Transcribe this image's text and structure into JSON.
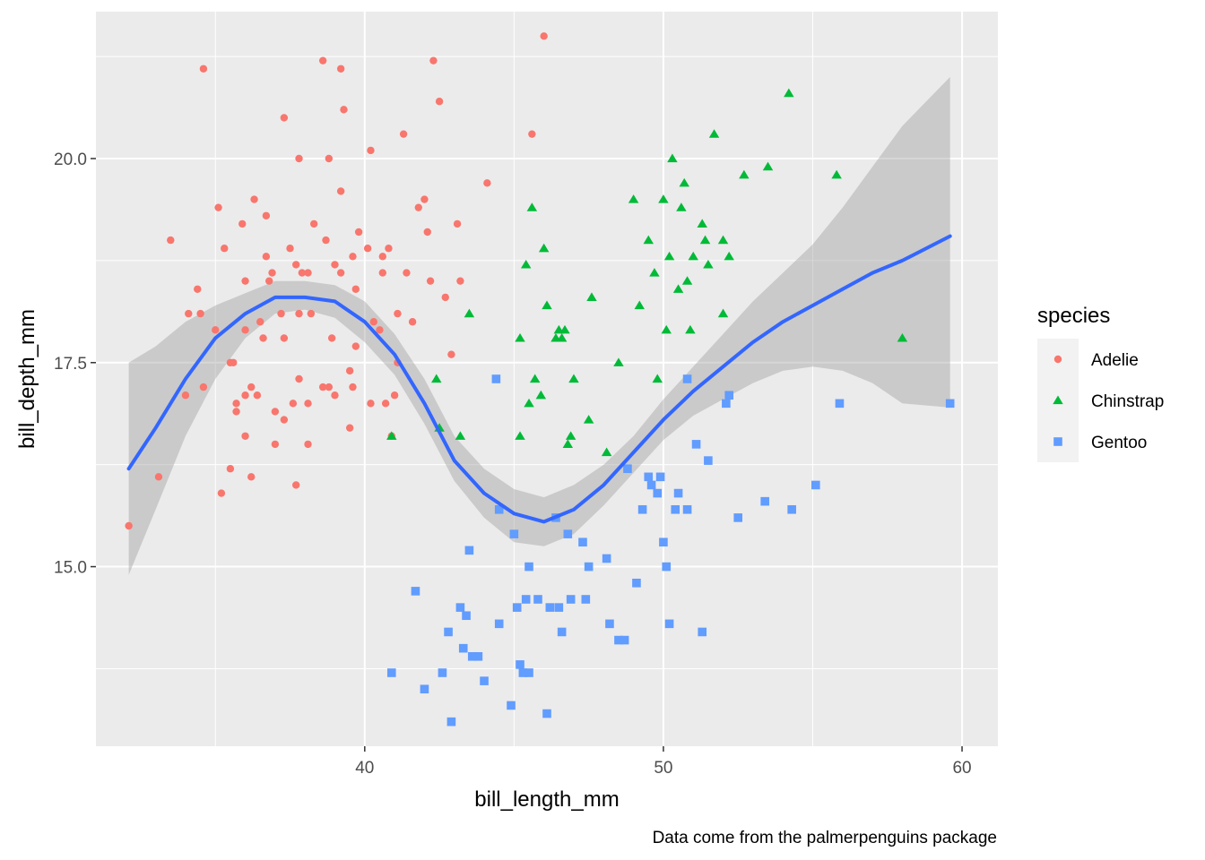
{
  "chart_data": {
    "type": "scatter",
    "xlabel": "bill_length_mm",
    "ylabel": "bill_depth_mm",
    "caption": "Data come from the palmerpenguins package",
    "xlim": [
      31.0,
      61.2
    ],
    "ylim": [
      12.8,
      21.8
    ],
    "x_ticks": [
      40,
      50,
      60
    ],
    "x_tick_labels": [
      "40",
      "50",
      "60"
    ],
    "y_ticks": [
      15.0,
      17.5,
      20.0
    ],
    "y_tick_labels": [
      "15.0",
      "17.5",
      "20.0"
    ],
    "x_minor_ticks": [
      35,
      45,
      55
    ],
    "y_minor_ticks": [
      13.75,
      16.25,
      18.75,
      21.25
    ],
    "grid": true,
    "legend": {
      "title": "species",
      "position": "right",
      "entries": [
        {
          "label": "Adelie",
          "shape": "circle",
          "color": "#F8766D"
        },
        {
          "label": "Chinstrap",
          "shape": "triangle",
          "color": "#00BA38"
        },
        {
          "label": "Gentoo",
          "shape": "square",
          "color": "#619CFF"
        }
      ]
    },
    "series": [
      {
        "name": "Adelie",
        "shape": "circle",
        "color": "#F8766D",
        "points": [
          [
            32.1,
            15.5
          ],
          [
            33.1,
            16.1
          ],
          [
            33.5,
            19.0
          ],
          [
            34.0,
            17.1
          ],
          [
            34.1,
            18.1
          ],
          [
            34.4,
            18.4
          ],
          [
            34.5,
            18.1
          ],
          [
            34.6,
            21.1
          ],
          [
            34.6,
            17.2
          ],
          [
            35.0,
            17.9
          ],
          [
            35.1,
            19.4
          ],
          [
            35.2,
            15.9
          ],
          [
            35.3,
            18.9
          ],
          [
            35.5,
            16.2
          ],
          [
            35.5,
            17.5
          ],
          [
            35.6,
            17.5
          ],
          [
            35.7,
            16.9
          ],
          [
            35.7,
            17.0
          ],
          [
            35.9,
            19.2
          ],
          [
            36.0,
            17.9
          ],
          [
            36.0,
            18.5
          ],
          [
            36.0,
            17.1
          ],
          [
            36.0,
            16.6
          ],
          [
            36.2,
            17.2
          ],
          [
            36.2,
            16.1
          ],
          [
            36.3,
            19.5
          ],
          [
            36.4,
            17.1
          ],
          [
            36.5,
            18.0
          ],
          [
            36.6,
            17.8
          ],
          [
            36.7,
            19.3
          ],
          [
            36.7,
            18.8
          ],
          [
            36.8,
            18.5
          ],
          [
            36.9,
            18.6
          ],
          [
            37.0,
            16.9
          ],
          [
            37.0,
            16.5
          ],
          [
            37.2,
            18.1
          ],
          [
            37.3,
            16.8
          ],
          [
            37.3,
            17.8
          ],
          [
            37.3,
            20.5
          ],
          [
            37.5,
            18.9
          ],
          [
            37.6,
            17.0
          ],
          [
            37.7,
            18.7
          ],
          [
            37.7,
            16.0
          ],
          [
            37.8,
            18.1
          ],
          [
            37.8,
            17.3
          ],
          [
            37.8,
            20.0
          ],
          [
            37.9,
            18.6
          ],
          [
            38.1,
            18.6
          ],
          [
            38.1,
            16.5
          ],
          [
            38.1,
            17.0
          ],
          [
            38.2,
            18.1
          ],
          [
            38.3,
            19.2
          ],
          [
            38.6,
            17.2
          ],
          [
            38.6,
            21.2
          ],
          [
            38.7,
            19.0
          ],
          [
            38.8,
            17.2
          ],
          [
            38.8,
            20.0
          ],
          [
            38.9,
            17.8
          ],
          [
            39.0,
            17.1
          ],
          [
            39.0,
            18.7
          ],
          [
            39.2,
            19.6
          ],
          [
            39.2,
            18.6
          ],
          [
            39.2,
            21.1
          ],
          [
            39.3,
            20.6
          ],
          [
            39.5,
            17.4
          ],
          [
            39.5,
            16.7
          ],
          [
            39.6,
            18.8
          ],
          [
            39.6,
            17.2
          ],
          [
            39.7,
            18.4
          ],
          [
            39.7,
            17.7
          ],
          [
            39.8,
            19.1
          ],
          [
            40.1,
            18.9
          ],
          [
            40.2,
            17.0
          ],
          [
            40.2,
            20.1
          ],
          [
            40.3,
            18.0
          ],
          [
            40.5,
            17.9
          ],
          [
            40.6,
            18.6
          ],
          [
            40.6,
            18.8
          ],
          [
            40.7,
            17.0
          ],
          [
            40.8,
            18.9
          ],
          [
            40.9,
            16.6
          ],
          [
            41.0,
            17.1
          ],
          [
            41.1,
            17.5
          ],
          [
            41.1,
            18.1
          ],
          [
            41.3,
            20.3
          ],
          [
            41.4,
            18.6
          ],
          [
            41.6,
            18.0
          ],
          [
            41.8,
            19.4
          ],
          [
            42.0,
            19.5
          ],
          [
            42.1,
            19.1
          ],
          [
            42.2,
            18.5
          ],
          [
            42.3,
            21.2
          ],
          [
            42.5,
            20.7
          ],
          [
            42.7,
            18.3
          ],
          [
            42.9,
            17.6
          ],
          [
            43.1,
            19.2
          ],
          [
            43.2,
            18.5
          ],
          [
            44.1,
            19.7
          ],
          [
            45.6,
            20.3
          ],
          [
            46.0,
            21.5
          ]
        ]
      },
      {
        "name": "Chinstrap",
        "shape": "triangle",
        "color": "#00BA38",
        "points": [
          [
            40.9,
            16.6
          ],
          [
            42.4,
            17.3
          ],
          [
            42.5,
            16.7
          ],
          [
            43.2,
            16.6
          ],
          [
            43.5,
            18.1
          ],
          [
            45.2,
            16.6
          ],
          [
            45.2,
            17.8
          ],
          [
            45.4,
            18.7
          ],
          [
            45.5,
            17.0
          ],
          [
            45.6,
            19.4
          ],
          [
            45.7,
            17.3
          ],
          [
            45.9,
            17.1
          ],
          [
            46.0,
            18.9
          ],
          [
            46.1,
            18.2
          ],
          [
            46.4,
            17.8
          ],
          [
            46.5,
            17.9
          ],
          [
            46.6,
            17.8
          ],
          [
            46.7,
            17.9
          ],
          [
            46.8,
            16.5
          ],
          [
            46.9,
            16.6
          ],
          [
            47.0,
            17.3
          ],
          [
            47.5,
            16.8
          ],
          [
            47.6,
            18.3
          ],
          [
            48.1,
            16.4
          ],
          [
            48.5,
            17.5
          ],
          [
            49.0,
            19.5
          ],
          [
            49.2,
            18.2
          ],
          [
            49.5,
            19.0
          ],
          [
            49.7,
            18.6
          ],
          [
            49.8,
            17.3
          ],
          [
            50.0,
            19.5
          ],
          [
            50.1,
            17.9
          ],
          [
            50.2,
            18.8
          ],
          [
            50.3,
            20.0
          ],
          [
            50.5,
            18.4
          ],
          [
            50.6,
            19.4
          ],
          [
            50.7,
            19.7
          ],
          [
            50.8,
            18.5
          ],
          [
            50.9,
            17.9
          ],
          [
            51.0,
            18.8
          ],
          [
            51.3,
            19.2
          ],
          [
            51.4,
            19.0
          ],
          [
            51.5,
            18.7
          ],
          [
            51.7,
            20.3
          ],
          [
            52.0,
            18.1
          ],
          [
            52.0,
            19.0
          ],
          [
            52.2,
            18.8
          ],
          [
            52.7,
            19.8
          ],
          [
            53.5,
            19.9
          ],
          [
            54.2,
            20.8
          ],
          [
            55.8,
            19.8
          ],
          [
            58.0,
            17.8
          ]
        ]
      },
      {
        "name": "Gentoo",
        "shape": "square",
        "color": "#619CFF",
        "points": [
          [
            40.9,
            13.7
          ],
          [
            41.7,
            14.7
          ],
          [
            42.0,
            13.5
          ],
          [
            42.6,
            13.7
          ],
          [
            42.8,
            14.2
          ],
          [
            42.9,
            13.1
          ],
          [
            43.2,
            14.5
          ],
          [
            43.3,
            14.0
          ],
          [
            43.4,
            14.4
          ],
          [
            43.5,
            15.2
          ],
          [
            43.6,
            13.9
          ],
          [
            43.8,
            13.9
          ],
          [
            44.0,
            13.6
          ],
          [
            44.4,
            17.3
          ],
          [
            44.5,
            14.3
          ],
          [
            44.5,
            15.7
          ],
          [
            44.9,
            13.3
          ],
          [
            45.0,
            15.4
          ],
          [
            45.1,
            14.5
          ],
          [
            45.2,
            13.8
          ],
          [
            45.3,
            13.7
          ],
          [
            45.4,
            14.6
          ],
          [
            45.5,
            13.7
          ],
          [
            45.5,
            15.0
          ],
          [
            45.8,
            14.6
          ],
          [
            46.1,
            13.2
          ],
          [
            46.2,
            14.5
          ],
          [
            46.4,
            15.6
          ],
          [
            46.5,
            14.5
          ],
          [
            46.6,
            14.2
          ],
          [
            46.8,
            15.4
          ],
          [
            46.9,
            14.6
          ],
          [
            47.3,
            15.3
          ],
          [
            47.4,
            14.6
          ],
          [
            47.5,
            15.0
          ],
          [
            48.1,
            15.1
          ],
          [
            48.2,
            14.3
          ],
          [
            48.5,
            14.1
          ],
          [
            48.7,
            14.1
          ],
          [
            48.8,
            16.2
          ],
          [
            49.1,
            14.8
          ],
          [
            49.3,
            15.7
          ],
          [
            49.5,
            16.1
          ],
          [
            49.6,
            16.0
          ],
          [
            49.8,
            15.9
          ],
          [
            49.9,
            16.1
          ],
          [
            50.0,
            15.3
          ],
          [
            50.1,
            15.0
          ],
          [
            50.2,
            14.3
          ],
          [
            50.4,
            15.7
          ],
          [
            50.5,
            15.9
          ],
          [
            50.8,
            15.7
          ],
          [
            50.8,
            17.3
          ],
          [
            51.1,
            16.5
          ],
          [
            51.3,
            14.2
          ],
          [
            51.5,
            16.3
          ],
          [
            52.1,
            17.0
          ],
          [
            52.2,
            17.1
          ],
          [
            52.5,
            15.6
          ],
          [
            53.4,
            15.8
          ],
          [
            54.3,
            15.7
          ],
          [
            55.1,
            16.0
          ],
          [
            55.9,
            17.0
          ],
          [
            59.6,
            17.0
          ]
        ]
      }
    ],
    "smooth": {
      "method": "loess",
      "color": "#3366FF",
      "ribbon_color": "#999999",
      "x": [
        32.1,
        33.0,
        34.0,
        35.0,
        36.0,
        37.0,
        38.0,
        39.0,
        40.0,
        41.0,
        42.0,
        43.0,
        44.0,
        45.0,
        46.0,
        47.0,
        48.0,
        49.0,
        50.0,
        51.0,
        52.0,
        53.0,
        54.0,
        55.0,
        56.0,
        57.0,
        58.0,
        59.6
      ],
      "y": [
        16.2,
        16.7,
        17.3,
        17.8,
        18.1,
        18.3,
        18.3,
        18.25,
        18.0,
        17.6,
        17.0,
        16.3,
        15.9,
        15.65,
        15.55,
        15.7,
        16.0,
        16.4,
        16.8,
        17.15,
        17.45,
        17.75,
        18.0,
        18.2,
        18.4,
        18.6,
        18.75,
        19.05
      ],
      "lower": [
        14.9,
        15.7,
        16.6,
        17.3,
        17.8,
        18.1,
        18.15,
        18.05,
        17.75,
        17.35,
        16.75,
        16.05,
        15.6,
        15.3,
        15.25,
        15.4,
        15.75,
        16.15,
        16.55,
        16.85,
        17.05,
        17.25,
        17.4,
        17.45,
        17.4,
        17.25,
        17.0,
        16.95
      ],
      "upper": [
        17.5,
        17.7,
        18.0,
        18.2,
        18.35,
        18.5,
        18.5,
        18.45,
        18.25,
        17.85,
        17.3,
        16.6,
        16.2,
        15.95,
        15.85,
        16.0,
        16.25,
        16.6,
        17.05,
        17.45,
        17.85,
        18.25,
        18.6,
        18.95,
        19.4,
        19.9,
        20.4,
        21.0
      ]
    }
  }
}
